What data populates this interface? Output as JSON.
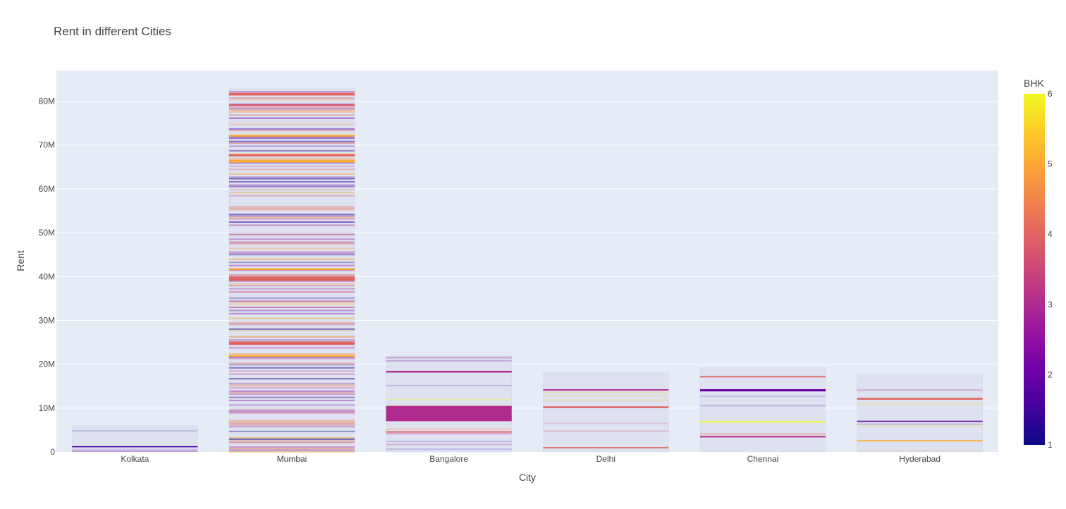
{
  "chart_data": {
    "type": "bar",
    "title": "Rent in different Cities",
    "xlabel": "City",
    "ylabel": "Rent",
    "categories": [
      "Kolkata",
      "Mumbai",
      "Bangalore",
      "Delhi",
      "Chennai",
      "Hyderabad"
    ],
    "values": [
      6000000,
      83000000,
      22000000,
      18000000,
      19200000,
      17800000
    ],
    "ylim": [
      0,
      87000000
    ],
    "y_ticks": [
      {
        "value": 0,
        "label": "0"
      },
      {
        "value": 10000000,
        "label": "10M"
      },
      {
        "value": 20000000,
        "label": "20M"
      },
      {
        "value": 30000000,
        "label": "30M"
      },
      {
        "value": 40000000,
        "label": "40M"
      },
      {
        "value": 50000000,
        "label": "50M"
      },
      {
        "value": 60000000,
        "label": "60M"
      },
      {
        "value": 70000000,
        "label": "70M"
      },
      {
        "value": 80000000,
        "label": "80M"
      }
    ],
    "grid": true,
    "colorbar": {
      "title": "BHK",
      "range": [
        1,
        6
      ],
      "ticks": [
        "1",
        "2",
        "3",
        "4",
        "5",
        "6"
      ],
      "colors": [
        "#0d0887",
        "#46039f",
        "#7201a8",
        "#9c179e",
        "#bd3786",
        "#d8576b",
        "#ed7953",
        "#fb9f3a",
        "#fdca26",
        "#f0f921"
      ]
    },
    "highlights": [
      {
        "category": "Kolkata",
        "y0": 1200000,
        "y1": 1300000,
        "bhk": 1.5
      },
      {
        "category": "Mumbai",
        "y0": 39000000,
        "y1": 40000000,
        "bhk": 4
      },
      {
        "category": "Mumbai",
        "y0": 66000000,
        "y1": 66600000,
        "bhk": 5
      },
      {
        "category": "Mumbai",
        "y0": 24400000,
        "y1": 25200000,
        "bhk": 4
      },
      {
        "category": "Mumbai",
        "y0": 81300000,
        "y1": 81900000,
        "bhk": 4
      },
      {
        "category": "Mumbai",
        "y0": 67400000,
        "y1": 67900000,
        "bhk": 4
      },
      {
        "category": "Mumbai",
        "y0": 71900000,
        "y1": 72300000,
        "bhk": 5
      },
      {
        "category": "Mumbai",
        "y0": 21700000,
        "y1": 22100000,
        "bhk": 5
      },
      {
        "category": "Mumbai",
        "y0": 41500000,
        "y1": 41900000,
        "bhk": 5
      },
      {
        "category": "Mumbai",
        "y0": 78900000,
        "y1": 79300000,
        "bhk": 3.8
      },
      {
        "category": "Bangalore",
        "y0": 7000000,
        "y1": 10500000,
        "bhk": 3
      },
      {
        "category": "Bangalore",
        "y0": 18100000,
        "y1": 18500000,
        "bhk": 3
      },
      {
        "category": "Bangalore",
        "y0": 4400000,
        "y1": 4700000,
        "bhk": 4
      },
      {
        "category": "Delhi",
        "y0": 10000000,
        "y1": 10400000,
        "bhk": 4
      },
      {
        "category": "Delhi",
        "y0": 14000000,
        "y1": 14300000,
        "bhk": 3
      },
      {
        "category": "Delhi",
        "y0": 800000,
        "y1": 1100000,
        "bhk": 4
      },
      {
        "category": "Chennai",
        "y0": 13800000,
        "y1": 14300000,
        "bhk": 2
      },
      {
        "category": "Chennai",
        "y0": 6700000,
        "y1": 7000000,
        "bhk": 6
      },
      {
        "category": "Chennai",
        "y0": 3300000,
        "y1": 3600000,
        "bhk": 3
      },
      {
        "category": "Chennai",
        "y0": 17000000,
        "y1": 17300000,
        "bhk": 4
      },
      {
        "category": "Hyderabad",
        "y0": 11900000,
        "y1": 12300000,
        "bhk": 4
      },
      {
        "category": "Hyderabad",
        "y0": 6900000,
        "y1": 7100000,
        "bhk": 1.8
      },
      {
        "category": "Hyderabad",
        "y0": 2500000,
        "y1": 2700000,
        "bhk": 5
      }
    ]
  }
}
